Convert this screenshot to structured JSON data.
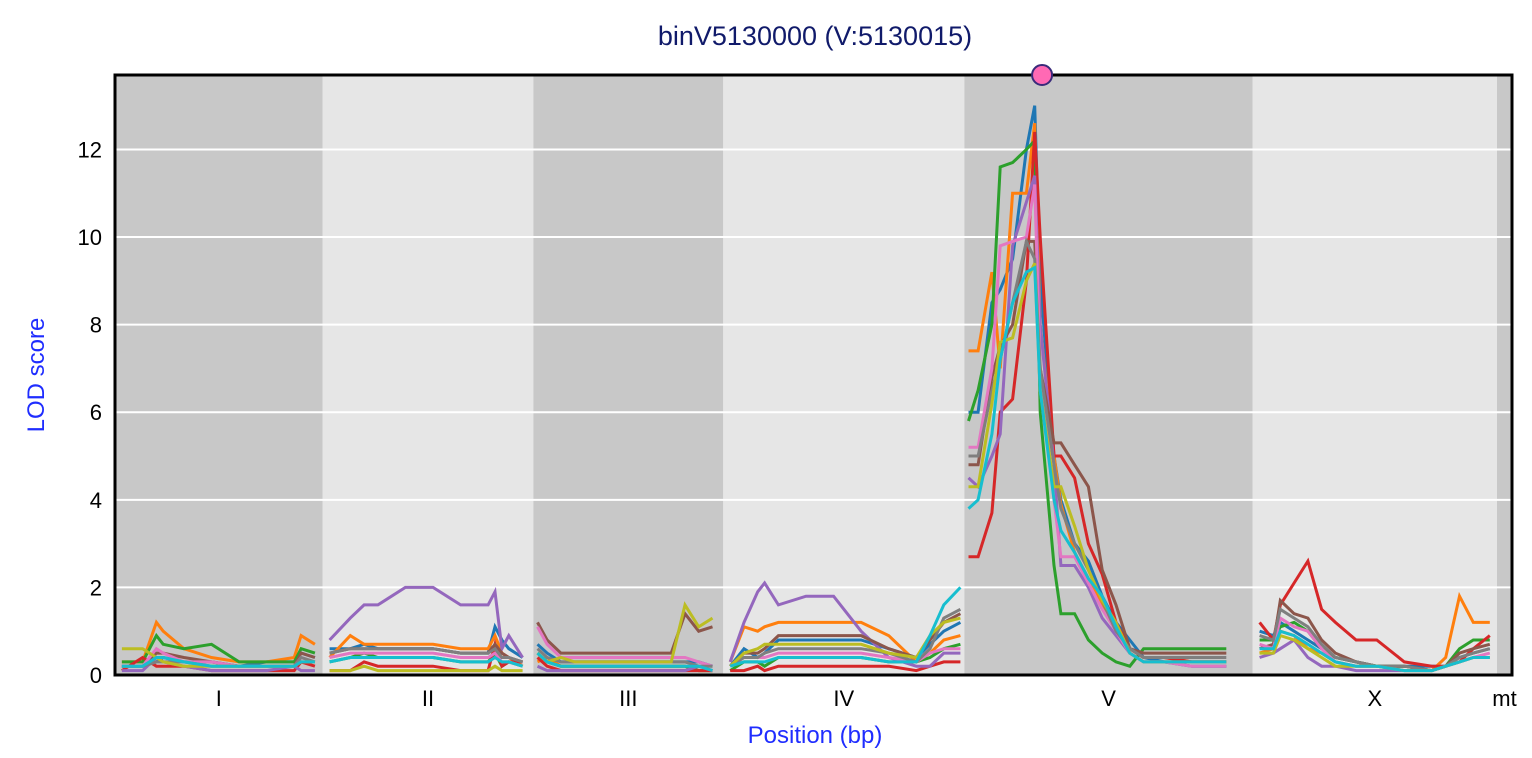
{
  "chart_data": {
    "type": "line",
    "title": "binV5130000 (V:5130015)",
    "xlabel": "Position (bp)",
    "ylabel": "LOD score",
    "ylim": [
      0,
      13.7
    ],
    "yticks": [
      0,
      2,
      4,
      6,
      8,
      10,
      12
    ],
    "xlim_mb": [
      0,
      101.35
    ],
    "grid": true,
    "marker": {
      "chromosome": "V",
      "position": 5130015,
      "color": "#ff69b4"
    },
    "chromosomes": [
      {
        "name": "I",
        "start_mb": 0,
        "length_mb": 15.07,
        "shade": "dark",
        "grid_mb": [
          0.5,
          2,
          3,
          3.5,
          5,
          7,
          9,
          11,
          13,
          13.5,
          14.5
        ]
      },
      {
        "name": "II",
        "start_mb": 15.07,
        "length_mb": 15.28,
        "shade": "light",
        "grid_mb": [
          0.5,
          2,
          3,
          4,
          6,
          8,
          10,
          12,
          12.5,
          13,
          13.5,
          14.5
        ]
      },
      {
        "name": "III",
        "start_mb": 30.35,
        "length_mb": 13.78,
        "shade": "dark",
        "grid_mb": [
          0.3,
          1,
          2,
          3,
          6,
          9,
          10,
          11,
          12,
          13
        ]
      },
      {
        "name": "IV",
        "start_mb": 44.13,
        "length_mb": 17.49,
        "shade": "light",
        "grid_mb": [
          0.5,
          1.5,
          2.5,
          3,
          4,
          6,
          8,
          10,
          12,
          14,
          15,
          16,
          17.2
        ]
      },
      {
        "name": "V",
        "start_mb": 61.62,
        "length_mb": 20.92,
        "shade": "dark",
        "grid_mb": [
          0.3,
          1.0,
          2.0,
          2.6,
          3.5,
          4.5,
          5.1,
          5.5,
          6.5,
          7.0,
          8.0,
          9.0,
          10.0,
          11.0,
          12.0,
          13.0,
          14.5,
          16.5,
          19
        ]
      },
      {
        "name": "X",
        "start_mb": 82.54,
        "length_mb": 17.72,
        "shade": "light",
        "grid_mb": [
          0.5,
          1.5,
          2,
          3,
          4,
          5,
          6,
          7.5,
          9,
          11,
          13,
          14,
          15,
          16,
          17.2
        ]
      },
      {
        "name": "mt",
        "start_mb": 100.26,
        "length_mb": 1.09,
        "shade": "dark",
        "grid_mb": []
      }
    ],
    "series": [
      {
        "name": "s1",
        "color": "#1f77b4",
        "values": {
          "I": [
            0.2,
            0.2,
            0.3,
            0.4,
            0.3,
            0.3,
            0.2,
            0.3,
            0.3,
            0.5,
            0.4
          ],
          "II": [
            0.6,
            0.6,
            0.7,
            0.6,
            0.6,
            0.6,
            0.5,
            0.5,
            1.1,
            0.8,
            0.6,
            0.4
          ],
          "III": [
            0.7,
            0.5,
            0.3,
            0.3,
            0.3,
            0.3,
            0.3,
            0.3,
            0.3,
            0.2
          ],
          "IV": [
            0.2,
            0.6,
            0.4,
            0.5,
            0.8,
            0.8,
            0.8,
            0.8,
            0.6,
            0.4,
            0.7,
            1.0,
            1.2
          ],
          "V": [
            6.0,
            6.0,
            8.5,
            8.8,
            9.5,
            12.0,
            13.0,
            9.0,
            5.0,
            4.0,
            3.0,
            2.6,
            1.8,
            1.2,
            0.8,
            0.4,
            0.3,
            0.2,
            0.2
          ],
          "X": [
            1.0,
            0.9,
            1.2,
            1.0,
            0.8,
            0.6,
            0.4,
            0.3,
            0.2,
            0.2,
            0.2,
            0.2,
            0.4,
            0.5,
            0.6
          ]
        }
      },
      {
        "name": "s2",
        "color": "#ff7f0e",
        "values": {
          "I": [
            0.3,
            0.3,
            1.2,
            1.0,
            0.6,
            0.4,
            0.3,
            0.3,
            0.4,
            0.9,
            0.7
          ],
          "II": [
            0.4,
            0.9,
            0.7,
            0.7,
            0.7,
            0.7,
            0.6,
            0.6,
            0.9,
            0.5,
            0.4,
            0.2
          ],
          "III": [
            0.3,
            0.4,
            0.2,
            0.2,
            0.2,
            0.2,
            0.2,
            0.2,
            0.1,
            0.1
          ],
          "IV": [
            0.3,
            1.1,
            1.0,
            1.1,
            1.2,
            1.2,
            1.2,
            1.2,
            0.9,
            0.3,
            0.5,
            0.8,
            0.9
          ],
          "V": [
            7.4,
            7.4,
            9.2,
            7.0,
            11.0,
            11.0,
            12.6,
            8.0,
            5.0,
            3.9,
            2.8,
            2.2,
            1.6,
            1.1,
            0.6,
            0.4,
            0.4,
            0.3,
            0.3
          ],
          "X": [
            0.5,
            0.6,
            1.0,
            0.9,
            0.6,
            0.5,
            0.3,
            0.2,
            0.2,
            0.1,
            0.1,
            0.4,
            1.8,
            1.2,
            1.2
          ]
        }
      },
      {
        "name": "s3",
        "color": "#2ca02c",
        "values": {
          "I": [
            0.3,
            0.3,
            0.9,
            0.7,
            0.6,
            0.7,
            0.3,
            0.3,
            0.3,
            0.6,
            0.5
          ],
          "II": [
            0.3,
            0.4,
            0.5,
            0.4,
            0.4,
            0.4,
            0.3,
            0.3,
            0.5,
            0.2,
            0.3,
            0.2
          ],
          "III": [
            0.5,
            0.3,
            0.2,
            0.2,
            0.2,
            0.2,
            0.2,
            0.2,
            0.1,
            0.1
          ],
          "IV": [
            0.1,
            0.3,
            0.3,
            0.2,
            0.4,
            0.4,
            0.4,
            0.4,
            0.3,
            0.3,
            0.4,
            0.6,
            0.7
          ],
          "V": [
            5.8,
            6.5,
            8.0,
            11.6,
            11.7,
            12.0,
            12.2,
            6.0,
            2.5,
            1.4,
            1.4,
            0.8,
            0.5,
            0.3,
            0.2,
            0.6,
            0.6,
            0.6,
            0.6
          ],
          "X": [
            0.8,
            0.8,
            1.1,
            1.2,
            1.0,
            0.6,
            0.4,
            0.3,
            0.2,
            0.2,
            0.1,
            0.2,
            0.6,
            0.8,
            0.8
          ]
        }
      },
      {
        "name": "s4",
        "color": "#d62728",
        "values": {
          "I": [
            0.1,
            0.4,
            0.2,
            0.2,
            0.2,
            0.1,
            0.1,
            0.1,
            0.1,
            0.3,
            0.2
          ],
          "II": [
            0.1,
            0.1,
            0.3,
            0.2,
            0.2,
            0.2,
            0.1,
            0.1,
            0.7,
            0.2,
            0.3,
            0.3
          ],
          "III": [
            0.4,
            0.2,
            0.1,
            0.1,
            0.1,
            0.1,
            0.1,
            0.1,
            0.1,
            0.1
          ],
          "IV": [
            0.1,
            0.1,
            0.2,
            0.1,
            0.2,
            0.2,
            0.2,
            0.2,
            0.2,
            0.1,
            0.2,
            0.3,
            0.3
          ],
          "V": [
            2.7,
            2.7,
            3.7,
            6.0,
            6.3,
            9.0,
            12.4,
            10.0,
            5.0,
            5.0,
            4.5,
            3.0,
            2.3,
            1.2,
            0.6,
            0.4,
            0.4,
            0.3,
            0.3
          ],
          "X": [
            1.2,
            0.8,
            1.6,
            2.1,
            2.6,
            1.5,
            1.2,
            0.8,
            0.8,
            0.3,
            0.2,
            0.2,
            0.3,
            0.6,
            0.9
          ]
        }
      },
      {
        "name": "s5",
        "color": "#9467bd",
        "values": {
          "I": [
            0.1,
            0.1,
            0.4,
            0.3,
            0.2,
            0.1,
            0.1,
            0.1,
            0.2,
            0.1,
            0.1
          ],
          "II": [
            0.8,
            1.3,
            1.6,
            1.6,
            2.0,
            2.0,
            1.6,
            1.6,
            1.9,
            0.6,
            0.9,
            0.4
          ],
          "III": [
            0.2,
            0.1,
            0.1,
            0.1,
            0.1,
            0.1,
            0.1,
            0.1,
            0.2,
            0.1
          ],
          "IV": [
            0.3,
            1.2,
            1.9,
            2.1,
            1.6,
            1.8,
            1.8,
            1.0,
            0.4,
            0.2,
            0.2,
            0.5,
            0.5
          ],
          "V": [
            4.5,
            4.3,
            5.0,
            5.5,
            9.8,
            10.8,
            11.4,
            8.0,
            4.8,
            2.5,
            2.5,
            2.0,
            1.3,
            0.9,
            0.5,
            0.3,
            0.3,
            0.3,
            0.3
          ],
          "X": [
            0.4,
            0.5,
            0.6,
            0.8,
            0.4,
            0.2,
            0.2,
            0.1,
            0.1,
            0.1,
            0.1,
            0.2,
            0.3,
            0.4,
            0.4
          ]
        }
      },
      {
        "name": "s6",
        "color": "#8c564b",
        "values": {
          "I": [
            0.2,
            0.2,
            0.5,
            0.5,
            0.4,
            0.3,
            0.2,
            0.2,
            0.2,
            0.5,
            0.4
          ],
          "II": [
            0.5,
            0.6,
            0.6,
            0.6,
            0.6,
            0.6,
            0.5,
            0.5,
            0.7,
            0.5,
            0.4,
            0.3
          ],
          "III": [
            1.2,
            0.8,
            0.5,
            0.5,
            0.5,
            0.5,
            0.5,
            1.4,
            1.0,
            1.1
          ],
          "IV": [
            0.2,
            0.5,
            0.5,
            0.6,
            0.9,
            0.9,
            0.9,
            0.9,
            0.6,
            0.4,
            0.8,
            1.2,
            1.4
          ],
          "V": [
            4.8,
            4.8,
            6.8,
            7.5,
            8.0,
            9.9,
            9.9,
            7.0,
            5.3,
            5.3,
            4.8,
            4.3,
            2.4,
            1.6,
            0.6,
            0.5,
            0.5,
            0.5,
            0.5
          ],
          "X": [
            0.6,
            0.7,
            1.7,
            1.4,
            1.3,
            0.8,
            0.5,
            0.3,
            0.2,
            0.2,
            0.1,
            0.2,
            0.5,
            0.6,
            0.7
          ]
        }
      },
      {
        "name": "s7",
        "color": "#e377c2",
        "values": {
          "I": [
            0.2,
            0.2,
            0.6,
            0.5,
            0.3,
            0.3,
            0.2,
            0.2,
            0.2,
            0.4,
            0.3
          ],
          "II": [
            0.4,
            0.5,
            0.5,
            0.5,
            0.5,
            0.5,
            0.4,
            0.4,
            0.5,
            0.3,
            0.3,
            0.2
          ],
          "III": [
            1.1,
            0.7,
            0.4,
            0.4,
            0.4,
            0.4,
            0.4,
            0.4,
            0.3,
            0.2
          ],
          "IV": [
            0.2,
            0.4,
            0.4,
            0.4,
            0.5,
            0.5,
            0.5,
            0.5,
            0.4,
            0.3,
            0.5,
            0.6,
            0.6
          ],
          "V": [
            5.2,
            5.2,
            7.0,
            9.8,
            9.9,
            10.0,
            11.2,
            7.0,
            4.0,
            2.7,
            2.7,
            2.1,
            1.5,
            1.0,
            0.5,
            0.3,
            0.3,
            0.2,
            0.2
          ],
          "X": [
            0.7,
            0.6,
            1.3,
            1.1,
            1.0,
            0.6,
            0.3,
            0.2,
            0.2,
            0.1,
            0.1,
            0.2,
            0.3,
            0.4,
            0.5
          ]
        }
      },
      {
        "name": "s8",
        "color": "#7f7f7f",
        "values": {
          "I": [
            0.2,
            0.2,
            0.3,
            0.3,
            0.3,
            0.2,
            0.2,
            0.2,
            0.2,
            0.4,
            0.3
          ],
          "II": [
            0.5,
            0.6,
            0.6,
            0.6,
            0.6,
            0.6,
            0.5,
            0.5,
            0.6,
            0.4,
            0.4,
            0.3
          ],
          "III": [
            0.6,
            0.4,
            0.3,
            0.3,
            0.3,
            0.3,
            0.3,
            0.3,
            0.2,
            0.2
          ],
          "IV": [
            0.2,
            0.4,
            0.4,
            0.5,
            0.6,
            0.6,
            0.6,
            0.6,
            0.5,
            0.3,
            0.6,
            1.3,
            1.5
          ],
          "V": [
            5.0,
            5.0,
            6.5,
            7.2,
            8.5,
            9.9,
            9.5,
            7.0,
            4.8,
            3.8,
            3.0,
            2.4,
            1.7,
            1.0,
            0.6,
            0.4,
            0.4,
            0.4,
            0.4
          ],
          "X": [
            0.9,
            0.8,
            1.5,
            1.3,
            1.1,
            0.7,
            0.4,
            0.3,
            0.2,
            0.2,
            0.1,
            0.2,
            0.4,
            0.5,
            0.6
          ]
        }
      },
      {
        "name": "s9",
        "color": "#bcbd22",
        "values": {
          "I": [
            0.6,
            0.6,
            0.4,
            0.3,
            0.2,
            0.2,
            0.2,
            0.2,
            0.2,
            0.3,
            0.3
          ],
          "II": [
            0.1,
            0.1,
            0.2,
            0.1,
            0.1,
            0.1,
            0.1,
            0.1,
            0.2,
            0.1,
            0.1,
            0.1
          ],
          "III": [
            0.5,
            0.3,
            0.4,
            0.3,
            0.3,
            0.3,
            0.3,
            1.6,
            1.1,
            1.3
          ],
          "IV": [
            0.2,
            0.5,
            0.6,
            0.7,
            0.7,
            0.7,
            0.7,
            0.7,
            0.5,
            0.4,
            0.9,
            1.2,
            1.3
          ],
          "V": [
            4.3,
            4.3,
            6.2,
            7.6,
            7.7,
            9.0,
            9.4,
            6.5,
            4.3,
            4.3,
            3.4,
            2.4,
            1.7,
            1.2,
            0.5,
            0.3,
            0.3,
            0.3,
            0.3
          ],
          "X": [
            0.5,
            0.5,
            0.9,
            0.8,
            0.6,
            0.4,
            0.2,
            0.2,
            0.2,
            0.1,
            0.1,
            0.2,
            0.3,
            0.4,
            0.4
          ]
        }
      },
      {
        "name": "s10",
        "color": "#17becf",
        "values": {
          "I": [
            0.2,
            0.2,
            0.4,
            0.4,
            0.3,
            0.2,
            0.2,
            0.2,
            0.2,
            0.3,
            0.3
          ],
          "II": [
            0.3,
            0.4,
            0.4,
            0.4,
            0.4,
            0.4,
            0.3,
            0.3,
            0.4,
            0.3,
            0.3,
            0.2
          ],
          "III": [
            0.5,
            0.3,
            0.2,
            0.2,
            0.2,
            0.2,
            0.2,
            0.2,
            0.2,
            0.1
          ],
          "IV": [
            0.2,
            0.3,
            0.3,
            0.3,
            0.4,
            0.4,
            0.4,
            0.4,
            0.3,
            0.3,
            0.9,
            1.6,
            2.0
          ],
          "V": [
            3.8,
            4.0,
            5.5,
            7.2,
            8.5,
            9.2,
            9.3,
            6.5,
            4.0,
            3.3,
            2.8,
            2.2,
            1.8,
            1.1,
            0.5,
            0.3,
            0.3,
            0.3,
            0.3
          ],
          "X": [
            0.6,
            0.6,
            1.0,
            0.9,
            0.7,
            0.5,
            0.3,
            0.2,
            0.2,
            0.1,
            0.1,
            0.2,
            0.3,
            0.4,
            0.4
          ]
        }
      }
    ]
  }
}
